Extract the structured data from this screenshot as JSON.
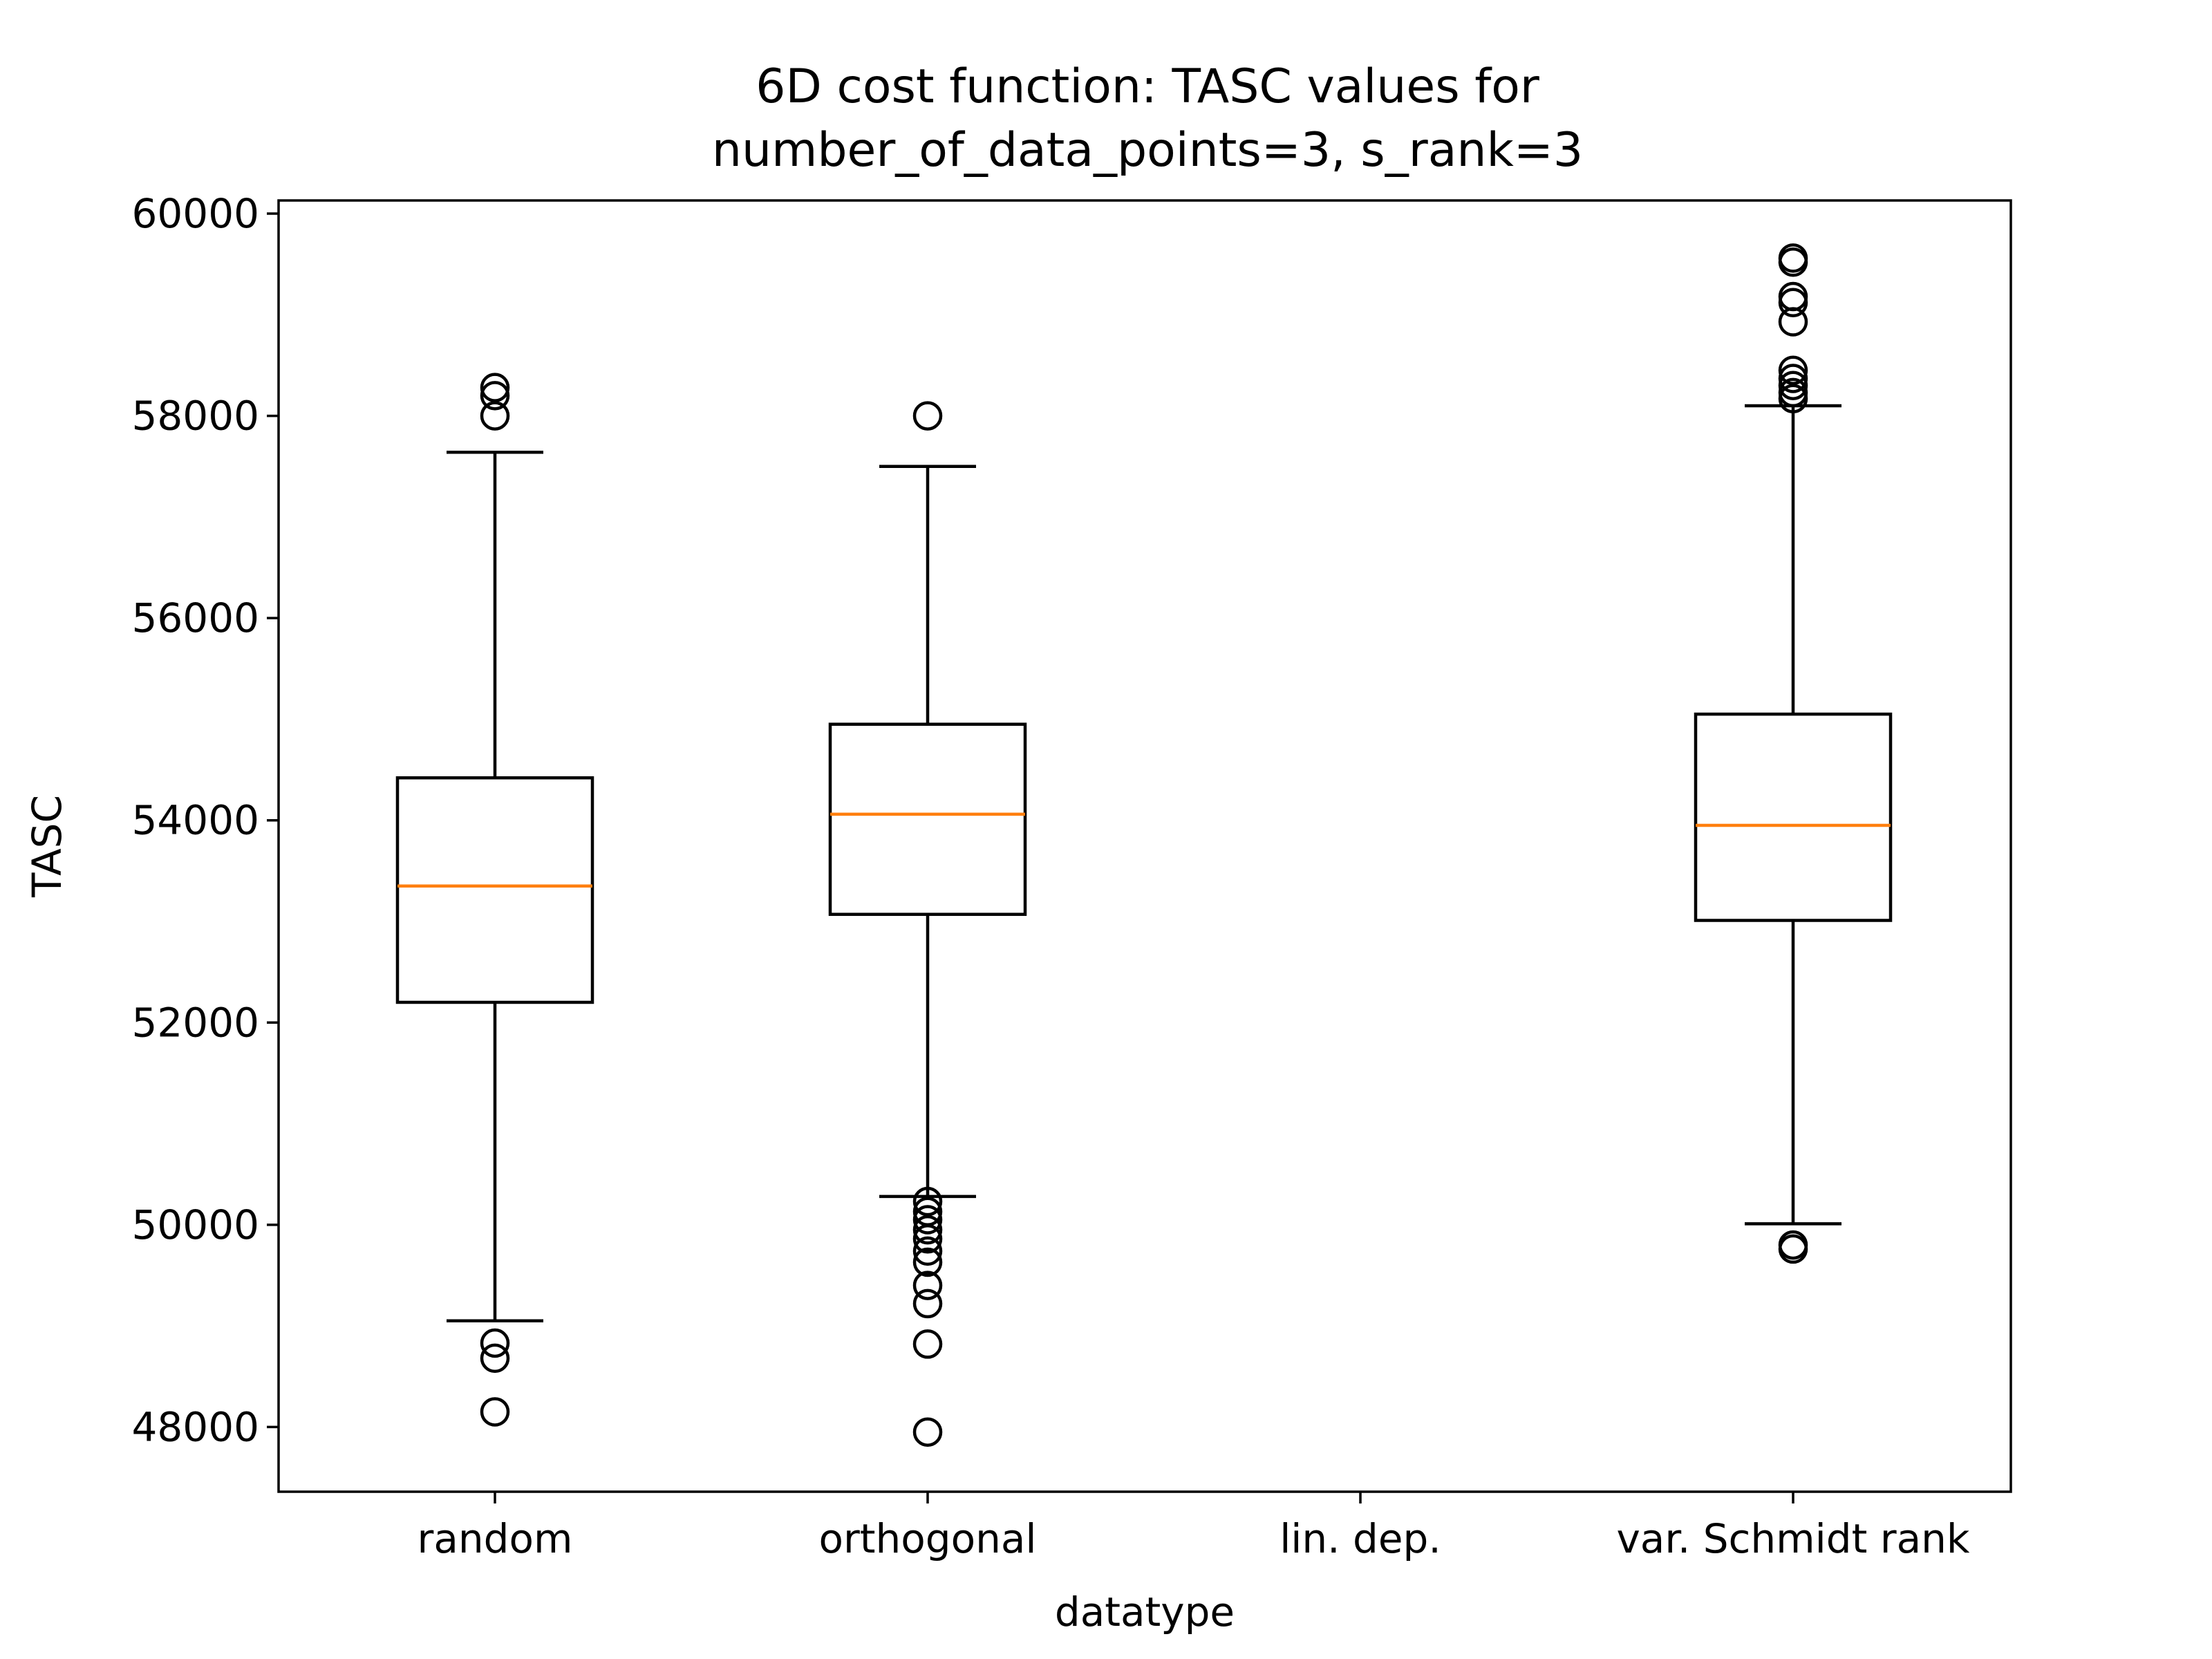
{
  "chart_data": {
    "type": "boxplot",
    "title_lines": [
      "6D cost function: TASC values for",
      "number_of_data_points=3, s_rank=3"
    ],
    "xlabel": "datatype",
    "ylabel": "TASC",
    "ylim": [
      47360,
      60130
    ],
    "yticks": [
      {
        "value": 48000,
        "label": "48000"
      },
      {
        "value": 50000,
        "label": "50000"
      },
      {
        "value": 52000,
        "label": "52000"
      },
      {
        "value": 54000,
        "label": "54000"
      },
      {
        "value": 56000,
        "label": "56000"
      },
      {
        "value": 58000,
        "label": "58000"
      },
      {
        "value": 60000,
        "label": "60000"
      }
    ],
    "categories": [
      "random",
      "orthogonal",
      "lin. dep.",
      "var. Schmidt rank"
    ],
    "boxes": [
      {
        "category": "random",
        "whisker_low": 49050,
        "q1": 52200,
        "median": 53350,
        "q3": 54420,
        "whisker_high": 57640,
        "outliers": [
          48150,
          48680,
          48830,
          58000,
          58200,
          58280
        ]
      },
      {
        "category": "orthogonal",
        "whisker_low": 50280,
        "q1": 53070,
        "median": 54060,
        "q3": 54950,
        "whisker_high": 57500,
        "outliers": [
          47950,
          48820,
          49220,
          49400,
          49630,
          49740,
          49860,
          49950,
          50050,
          50130,
          50230,
          58000
        ]
      },
      {
        "category": "lin. dep.",
        "empty": true
      },
      {
        "category": "var. Schmidt rank",
        "whisker_low": 50010,
        "q1": 53010,
        "median": 53950,
        "q3": 55050,
        "whisker_high": 58100,
        "outliers": [
          49760,
          49800,
          58170,
          58230,
          58300,
          58370,
          58450,
          58930,
          59120,
          59180,
          59520,
          59560
        ]
      }
    ],
    "colors": {
      "box": "#000000",
      "median": "#ff7f0e",
      "background": "#ffffff"
    }
  }
}
